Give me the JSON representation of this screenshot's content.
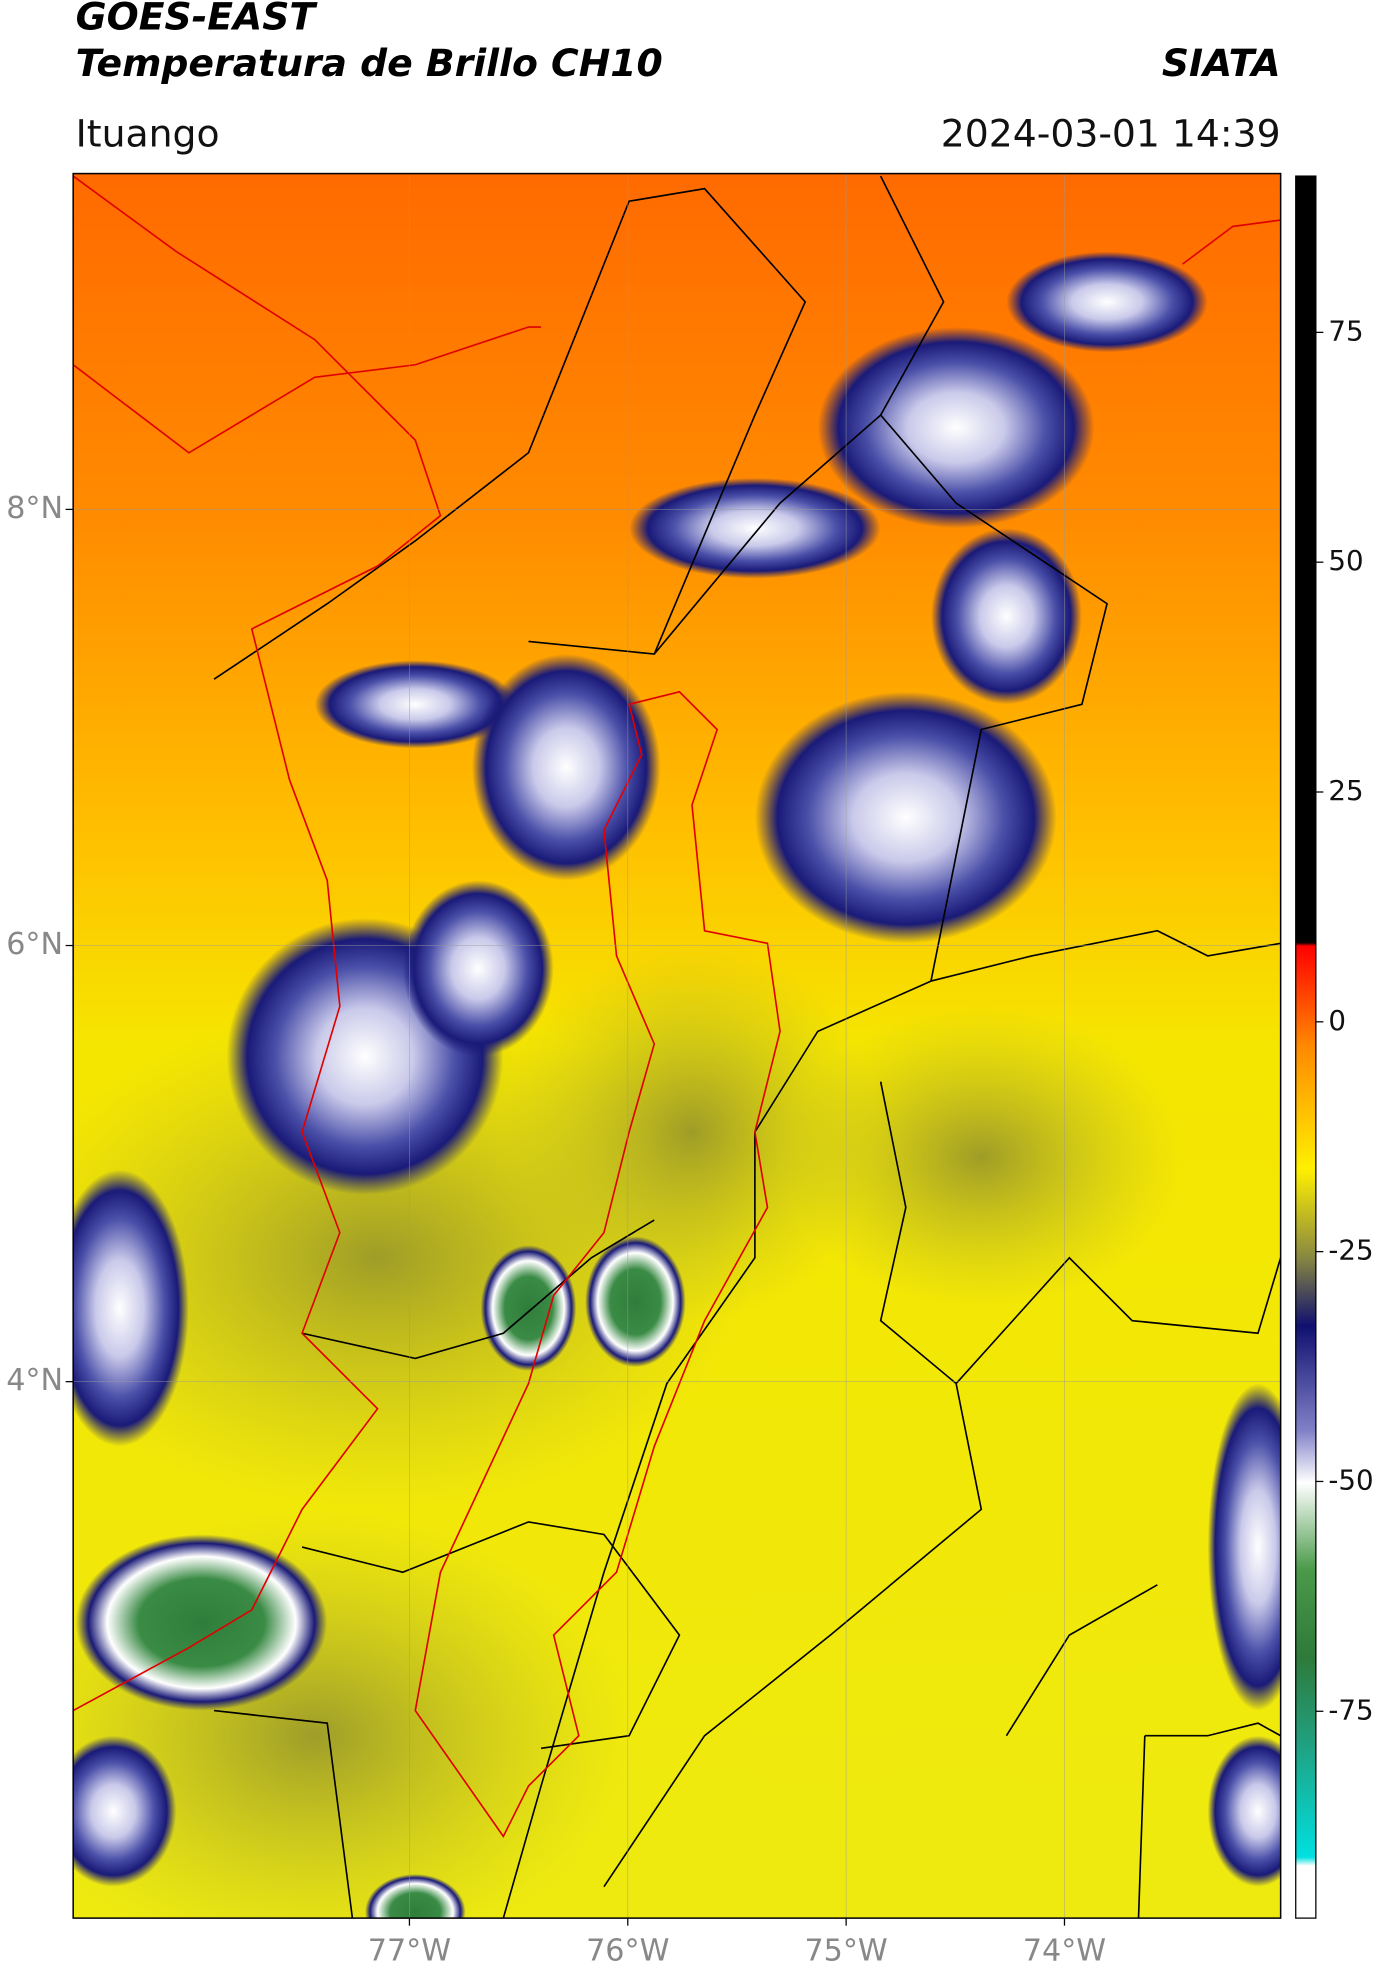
{
  "header": {
    "title": "GOES-EAST",
    "subtitle": "Temperatura de Brillo CH10",
    "source": "SIATA",
    "region": "Ituango",
    "datetime": "2024-03-01 14:39"
  },
  "map": {
    "xlim": [
      -78.54,
      -73.01
    ],
    "ylim": [
      1.54,
      9.54
    ],
    "grid": true,
    "xticks": [
      {
        "value": -77,
        "label": "77°W"
      },
      {
        "value": -76,
        "label": "76°W"
      },
      {
        "value": -75,
        "label": "75°W"
      },
      {
        "value": -74,
        "label": "74°W"
      }
    ],
    "yticks": [
      {
        "value": 8,
        "label": "8°N"
      },
      {
        "value": 6,
        "label": "6°N"
      },
      {
        "value": 4,
        "label": "4°N"
      }
    ]
  },
  "colorbar": {
    "lim": [
      -97.5,
      92
    ],
    "ticks": [
      75,
      50,
      25,
      0,
      -25,
      -50,
      -75
    ]
  }
}
